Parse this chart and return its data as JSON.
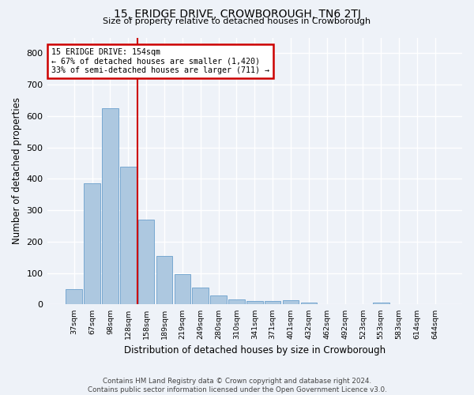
{
  "title": "15, ERIDGE DRIVE, CROWBOROUGH, TN6 2TJ",
  "subtitle": "Size of property relative to detached houses in Crowborough",
  "xlabel": "Distribution of detached houses by size in Crowborough",
  "ylabel": "Number of detached properties",
  "bar_labels": [
    "37sqm",
    "67sqm",
    "98sqm",
    "128sqm",
    "158sqm",
    "189sqm",
    "219sqm",
    "249sqm",
    "280sqm",
    "310sqm",
    "341sqm",
    "371sqm",
    "401sqm",
    "432sqm",
    "462sqm",
    "492sqm",
    "523sqm",
    "553sqm",
    "583sqm",
    "614sqm",
    "644sqm"
  ],
  "bar_values": [
    50,
    385,
    625,
    440,
    270,
    155,
    97,
    55,
    30,
    17,
    10,
    10,
    13,
    5,
    0,
    0,
    0,
    5,
    0,
    0,
    0
  ],
  "bar_color": "#adc8e0",
  "bar_edge_color": "#6aa0cc",
  "vline_color": "#cc0000",
  "annotation_text": "15 ERIDGE DRIVE: 154sqm\n← 67% of detached houses are smaller (1,420)\n33% of semi-detached houses are larger (711) →",
  "annotation_box_edge_color": "#cc0000",
  "ylim": [
    0,
    850
  ],
  "yticks": [
    0,
    100,
    200,
    300,
    400,
    500,
    600,
    700,
    800
  ],
  "background_color": "#eef2f8",
  "grid_color": "#ffffff",
  "footer_line1": "Contains HM Land Registry data © Crown copyright and database right 2024.",
  "footer_line2": "Contains public sector information licensed under the Open Government Licence v3.0."
}
